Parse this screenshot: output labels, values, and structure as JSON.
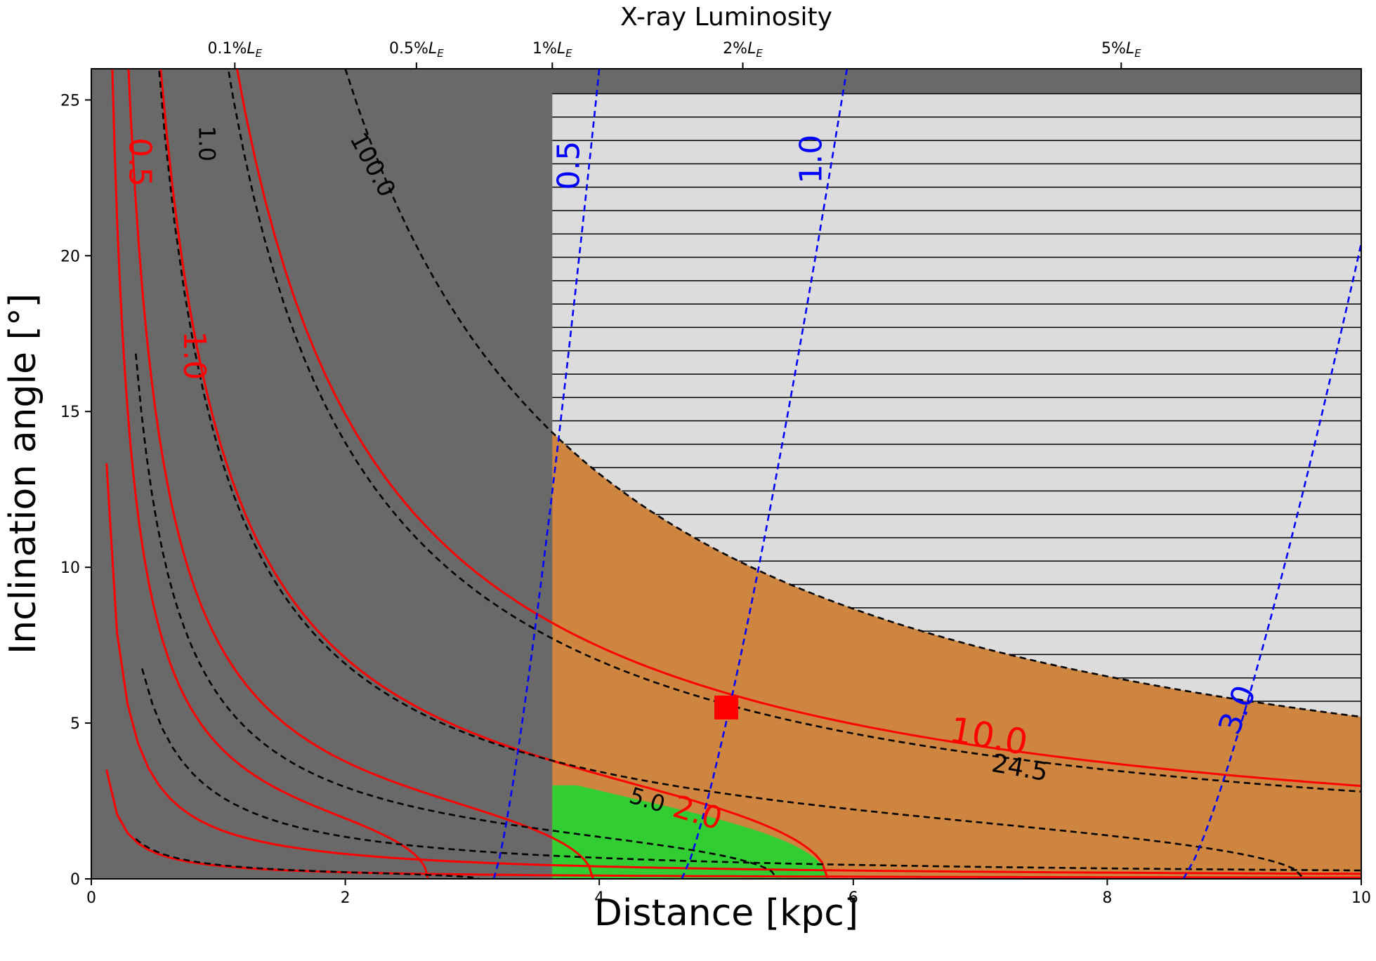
{
  "chart_data": {
    "type": "contour",
    "xlabel": "Distance [kpc]",
    "ylabel": "Inclination angle [°]",
    "top_axis_title": "X-ray Luminosity",
    "xlim": [
      0,
      10
    ],
    "ylim": [
      0,
      26
    ],
    "x_ticks": [
      0,
      2,
      4,
      6,
      8,
      10
    ],
    "y_ticks": [
      0,
      5,
      10,
      15,
      20,
      25
    ],
    "x_tick_labels": [
      "0",
      "2",
      "4",
      "6",
      "8",
      "10"
    ],
    "y_tick_labels": [
      "0",
      "5",
      "10",
      "15",
      "20",
      "25"
    ],
    "top_ticks": [
      {
        "x": 1.13,
        "label": "0.1%",
        "sub": "E"
      },
      {
        "x": 2.56,
        "label": "0.5%",
        "sub": "E"
      },
      {
        "x": 3.63,
        "label": "1%",
        "sub": "E"
      },
      {
        "x": 5.13,
        "label": "2%",
        "sub": "E"
      },
      {
        "x": 8.11,
        "label": "5%",
        "sub": "E"
      }
    ],
    "top_tick_symbol": "L",
    "colors": {
      "dark_region": "#696969",
      "hatched_region": "#dcdcdc",
      "allowed_region": "#cd853f",
      "green_region": "#32cd32",
      "red_contours": "#ff0000",
      "black_contours": "#000000",
      "blue_contours": "#0000ff"
    },
    "regions": {
      "dark_x_max": 3.63,
      "hatch_y_min_from": 25.2,
      "boundary_curve_c": 52,
      "green_curve_c": 12
    },
    "red_contours": [
      {
        "level": "0.5",
        "c": 0.42
      },
      {
        "level": "1.0",
        "c": 1.6
      },
      {
        "level": "2.0",
        "c": 4.3
      },
      {
        "level": "5.0",
        "c": 7.6
      },
      {
        "level": "10.0",
        "c": 14.2
      }
    ],
    "black_contours": [
      {
        "level": "1.0",
        "c": 0.45
      },
      {
        "level": "5.0",
        "c": 5.9
      },
      {
        "level": "10.0",
        "c": 2.7
      },
      {
        "level": "24.5",
        "c": 13.8
      },
      {
        "level": "100.0",
        "c": 28.0
      }
    ],
    "blue_contours": [
      {
        "level": "0.5",
        "x0": 3.17,
        "x1": 4.0
      },
      {
        "level": "1.0",
        "x0": 4.65,
        "x1": 5.95
      },
      {
        "level": "3.0",
        "x0": 8.6,
        "x1": 10.3
      }
    ],
    "labels": {
      "red": [
        "0.5",
        "1.0",
        "2.0",
        "10.0"
      ],
      "black": [
        "1.0",
        "100.0",
        "5.0",
        "24.5"
      ],
      "blue": [
        "0.5",
        "1.0",
        "3.0"
      ]
    },
    "marker": {
      "x": 5.0,
      "y": 5.5,
      "shape": "square",
      "color": "#ff0000"
    }
  }
}
